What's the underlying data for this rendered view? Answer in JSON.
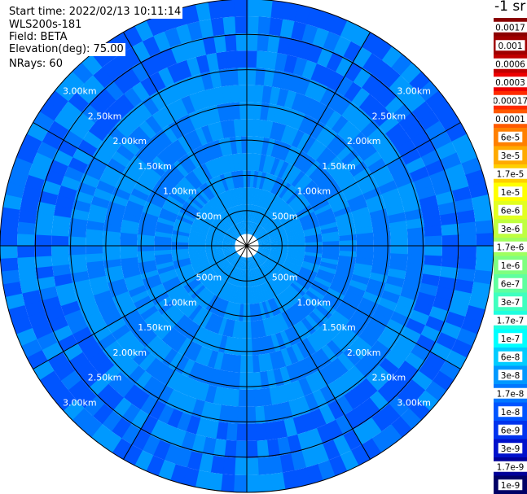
{
  "info": {
    "start_time": "Start time: 2022/02/13 10:11:14",
    "site": "WLS200s-181",
    "field": "Field: BETA",
    "elevation": "Elevation(deg): 75.00",
    "nrays": "NRays: 60"
  },
  "colorbar": {
    "unit": "-1 sr",
    "levels": [
      {
        "label": "0.0017",
        "color": "#8b0000"
      },
      {
        "label": "0.001",
        "color": "#a00000"
      },
      {
        "label": "0.0006",
        "color": "#c00000"
      },
      {
        "label": "0.0003",
        "color": "#ee0000"
      },
      {
        "label": "0.00017",
        "color": "#ff2a00"
      },
      {
        "label": "0.0001",
        "color": "#ff5a00"
      },
      {
        "label": "6e-5",
        "color": "#ff8000"
      },
      {
        "label": "3e-5",
        "color": "#ffaa00"
      },
      {
        "label": "1.7e-5",
        "color": "#ffcf00"
      },
      {
        "label": "1e-5",
        "color": "#ffff00"
      },
      {
        "label": "6e-6",
        "color": "#e2ff1f"
      },
      {
        "label": "3e-6",
        "color": "#bfff3f"
      },
      {
        "label": "1.7e-6",
        "color": "#9fff5f"
      },
      {
        "label": "1e-6",
        "color": "#7fff7f"
      },
      {
        "label": "6e-7",
        "color": "#5fff9f"
      },
      {
        "label": "3e-7",
        "color": "#3fffbf"
      },
      {
        "label": "1.7e-7",
        "color": "#1fffdf"
      },
      {
        "label": "1e-7",
        "color": "#00ffff"
      },
      {
        "label": "6e-8",
        "color": "#00ccff"
      },
      {
        "label": "3e-8",
        "color": "#0099ff"
      },
      {
        "label": "1.7e-8",
        "color": "#0077ff"
      },
      {
        "label": "1e-8",
        "color": "#0055ff"
      },
      {
        "label": "6e-9",
        "color": "#0033ee"
      },
      {
        "label": "3e-9",
        "color": "#0011cc"
      },
      {
        "label": "1.7e-9",
        "color": "#000099"
      },
      {
        "label": "1e-9",
        "color": "#000066"
      }
    ]
  },
  "chart_data": {
    "type": "heatmap",
    "projection": "polar-ppi",
    "rays": 60,
    "gates": 14,
    "max_range_km": 3.5,
    "inner_blank_km": 0.1,
    "range_rings_km": [
      0.5,
      1.0,
      1.5,
      2.0,
      2.5,
      3.0
    ],
    "ring_labels": [
      "500m",
      "1.00km",
      "1.50km",
      "2.00km",
      "2.50km",
      "3.00km"
    ],
    "spokes_deg": [
      0,
      30,
      60,
      90,
      120,
      150,
      180,
      210,
      240,
      270,
      300,
      330
    ],
    "gate_value_ranges": [
      [
        3e-08,
        3e-08
      ],
      [
        3e-08,
        3e-08
      ],
      [
        3e-08,
        3e-08
      ],
      [
        1.7e-08,
        3e-08
      ],
      [
        1.7e-08,
        3e-08
      ],
      [
        1.7e-08,
        3e-08
      ],
      [
        1.7e-08,
        3e-08
      ],
      [
        1.7e-08,
        3e-08
      ],
      [
        1.7e-08,
        3e-08
      ],
      [
        1.7e-08,
        3e-08
      ],
      [
        1e-08,
        3e-08
      ],
      [
        1e-08,
        3e-08
      ],
      [
        1e-08,
        3e-08
      ],
      [
        1e-08,
        3e-08
      ]
    ]
  }
}
